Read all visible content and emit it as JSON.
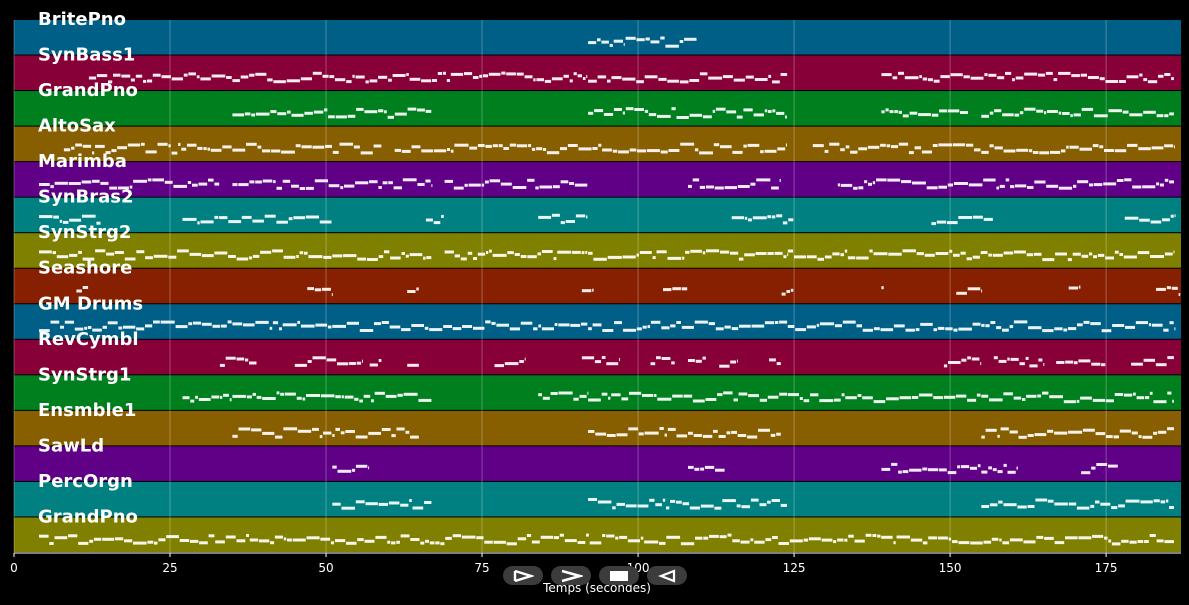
{
  "chart_data": {
    "type": "piano-roll",
    "xlabel": "Temps (secondes)",
    "xlim": [
      0,
      187
    ],
    "xticks": [
      0,
      25,
      50,
      75,
      100,
      125,
      150,
      175
    ],
    "grid": true,
    "tracks": [
      {
        "name": "BritePno",
        "color": "#005f87",
        "notes": [
          [
            92,
            98
          ],
          [
            98,
            102
          ],
          [
            102,
            109.5
          ]
        ]
      },
      {
        "name": "SynBass1",
        "color": "#870037",
        "notes": [
          [
            12,
            35
          ],
          [
            35,
            70
          ],
          [
            70,
            92
          ],
          [
            92,
            124
          ],
          [
            139,
            186
          ]
        ]
      },
      {
        "name": "GrandPno",
        "color": "#007f1f",
        "notes": [
          [
            35,
            67
          ],
          [
            92,
            124
          ],
          [
            139,
            153
          ],
          [
            155,
            186
          ]
        ]
      },
      {
        "name": "AltoSax",
        "color": "#875f00",
        "notes": [
          [
            8,
            35
          ],
          [
            35,
            59
          ],
          [
            61,
            70
          ],
          [
            70,
            124
          ],
          [
            128,
            155
          ],
          [
            155,
            186
          ]
        ]
      },
      {
        "name": "Marimba",
        "color": "#5f0087",
        "notes": [
          [
            4,
            33
          ],
          [
            35,
            67
          ],
          [
            69,
            92
          ],
          [
            108,
            123
          ],
          [
            132,
            186
          ]
        ]
      },
      {
        "name": "SynBras2",
        "color": "#008080",
        "notes": [
          [
            4,
            14
          ],
          [
            27,
            51
          ],
          [
            66,
            69
          ],
          [
            84,
            92
          ],
          [
            115,
            125
          ],
          [
            147,
            157
          ],
          [
            178,
            186
          ]
        ]
      },
      {
        "name": "SynStrg2",
        "color": "#808000",
        "notes": [
          [
            4,
            51
          ],
          [
            51,
            67
          ],
          [
            69,
            92
          ],
          [
            92,
            124
          ],
          [
            124,
            155
          ],
          [
            155,
            186
          ]
        ]
      },
      {
        "name": "Seashore",
        "color": "#872000",
        "notes": [
          [
            10,
            12
          ],
          [
            47,
            51
          ],
          [
            63,
            65
          ],
          [
            91,
            93
          ],
          [
            104,
            108
          ],
          [
            123,
            125
          ],
          [
            139,
            139.5
          ],
          [
            151,
            155
          ],
          [
            169,
            171
          ],
          [
            183,
            187
          ]
        ]
      },
      {
        "name": "GM Drums",
        "color": "#005f87",
        "notes": [
          [
            4,
            35
          ],
          [
            35,
            51
          ],
          [
            51,
            92
          ],
          [
            92,
            124
          ],
          [
            124,
            155
          ],
          [
            155,
            186
          ]
        ]
      },
      {
        "name": "RevCymbl",
        "color": "#870037",
        "notes": [
          [
            33,
            39
          ],
          [
            45,
            56
          ],
          [
            57,
            59
          ],
          [
            63,
            65
          ],
          [
            77,
            82
          ],
          [
            91,
            97
          ],
          [
            102,
            106
          ],
          [
            108,
            111
          ],
          [
            113,
            116
          ],
          [
            121,
            123
          ],
          [
            149,
            155
          ],
          [
            157,
            165
          ],
          [
            167,
            175
          ],
          [
            179,
            186
          ]
        ]
      },
      {
        "name": "SynStrg1",
        "color": "#007f1f",
        "notes": [
          [
            27,
            35
          ],
          [
            35,
            67
          ],
          [
            84,
            92
          ],
          [
            92,
            124
          ],
          [
            124,
            155
          ],
          [
            155,
            186
          ]
        ]
      },
      {
        "name": "Ensmble1",
        "color": "#875f00",
        "notes": [
          [
            35,
            51
          ],
          [
            51,
            65
          ],
          [
            92,
            108
          ],
          [
            108,
            123
          ],
          [
            155,
            186
          ]
        ]
      },
      {
        "name": "SawLd",
        "color": "#5f0087",
        "notes": [
          [
            51,
            57
          ],
          [
            108,
            114
          ],
          [
            139,
            155
          ],
          [
            155,
            161
          ],
          [
            171,
            177
          ]
        ]
      },
      {
        "name": "PercOrgn",
        "color": "#008080",
        "notes": [
          [
            51,
            67
          ],
          [
            92,
            124
          ],
          [
            155,
            186
          ]
        ]
      },
      {
        "name": "GrandPno",
        "color": "#808000",
        "notes": [
          [
            4,
            186
          ]
        ]
      }
    ]
  },
  "controls": [
    {
      "name": "rewind-icon",
      "symbol": "⊳"
    },
    {
      "name": "play-icon",
      "symbol": ">"
    },
    {
      "name": "stop-icon",
      "symbol": "■"
    },
    {
      "name": "back-icon",
      "symbol": "◁"
    }
  ]
}
